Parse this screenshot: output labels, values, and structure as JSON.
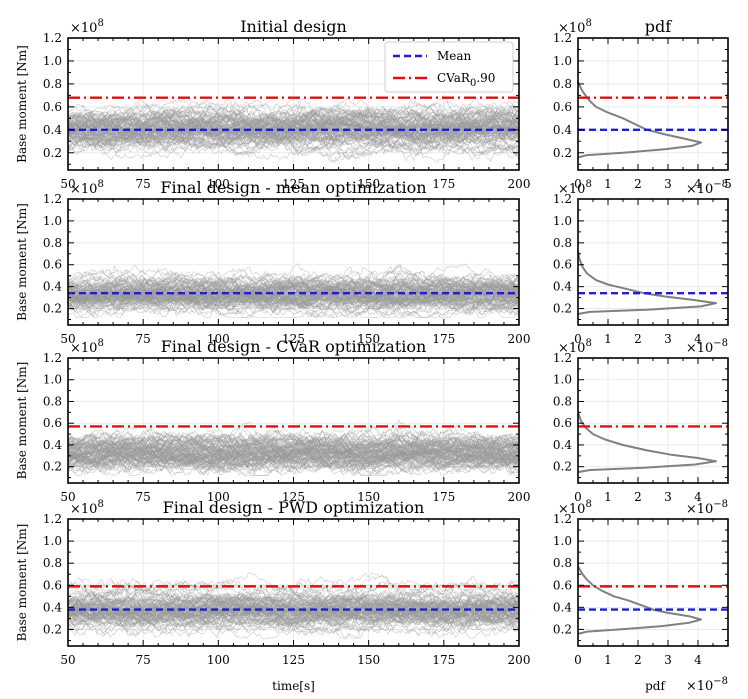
{
  "chart_data": {
    "type": "line",
    "figure": {
      "ylabel": "Base moment [Nm]",
      "xlabel": "time[s]",
      "pdf_xlabel": "pdf",
      "pdf_top_title": "pdf",
      "y_exponent": "×10",
      "y_exponent_power": "8",
      "pdf_exponent": "×10",
      "pdf_exponent_power": "−8",
      "legend": {
        "mean": "Mean",
        "cvar_main": "CVaR",
        "cvar_sub": "0",
        "cvar_tail": ".90"
      }
    },
    "xlim": [
      50,
      200
    ],
    "x_ticks": [
      50,
      75,
      100,
      125,
      150,
      175,
      200
    ],
    "ylim": [
      0.05,
      1.2
    ],
    "y_ticks": [
      0.2,
      0.4,
      0.6,
      0.8,
      1.0,
      1.2
    ],
    "y_tick_labels": [
      "0.2",
      "0.4",
      "0.6",
      "0.8",
      "1.0",
      "1.2"
    ],
    "pdf_xlim": [
      0,
      5
    ],
    "pdf_ticks": [
      0,
      1,
      2,
      3,
      4,
      5
    ],
    "colors": {
      "mean": "#1f1fcc",
      "cvar": "#e01010",
      "traces": "#9a9a9a",
      "pdf": "#808080"
    },
    "n_traces": 100,
    "panels": [
      {
        "title": "Initial design",
        "mean": 0.4,
        "cvar": 0.68,
        "trace_base": 0.4,
        "trace_spread": 0.11,
        "bump": null,
        "show_legend": true,
        "show_pdf_exponent": false,
        "show_pdf_title": true,
        "pdf_ticks_shown": [
          0,
          1,
          2,
          3,
          4,
          5
        ],
        "pdf_curve": [
          [
            0.16,
            0
          ],
          [
            0.18,
            0.3
          ],
          [
            0.2,
            1.5
          ],
          [
            0.23,
            2.9
          ],
          [
            0.26,
            3.8
          ],
          [
            0.29,
            4.1
          ],
          [
            0.32,
            3.6
          ],
          [
            0.36,
            2.9
          ],
          [
            0.4,
            2.3
          ],
          [
            0.45,
            1.9
          ],
          [
            0.5,
            1.5
          ],
          [
            0.55,
            1.0
          ],
          [
            0.6,
            0.6
          ],
          [
            0.65,
            0.4
          ],
          [
            0.7,
            0.25
          ],
          [
            0.75,
            0.12
          ],
          [
            0.82,
            0
          ]
        ]
      },
      {
        "title": "Final design - mean optimization",
        "mean": 0.34,
        "cvar": null,
        "trace_base": 0.33,
        "trace_spread": 0.085,
        "bump": 160,
        "show_legend": false,
        "show_pdf_exponent": true,
        "show_pdf_title": false,
        "pdf_ticks_shown": [
          0,
          1,
          2,
          3,
          4
        ],
        "pdf_curve": [
          [
            0.15,
            0
          ],
          [
            0.17,
            0.4
          ],
          [
            0.19,
            2.3
          ],
          [
            0.22,
            4.1
          ],
          [
            0.25,
            4.6
          ],
          [
            0.28,
            3.8
          ],
          [
            0.31,
            2.9
          ],
          [
            0.34,
            2.2
          ],
          [
            0.38,
            1.6
          ],
          [
            0.42,
            1.0
          ],
          [
            0.46,
            0.6
          ],
          [
            0.52,
            0.3
          ],
          [
            0.58,
            0.15
          ],
          [
            0.65,
            0.05
          ],
          [
            0.72,
            0
          ]
        ]
      },
      {
        "title": "Final design - CVaR optimization",
        "mean": null,
        "cvar": 0.57,
        "trace_base": 0.33,
        "trace_spread": 0.09,
        "bump": 160,
        "show_legend": false,
        "show_pdf_exponent": true,
        "show_pdf_title": false,
        "pdf_ticks_shown": [
          0,
          1,
          2,
          3,
          4
        ],
        "pdf_curve": [
          [
            0.15,
            0
          ],
          [
            0.17,
            0.4
          ],
          [
            0.19,
            2.2
          ],
          [
            0.22,
            3.9
          ],
          [
            0.25,
            4.6
          ],
          [
            0.28,
            4.0
          ],
          [
            0.31,
            3.1
          ],
          [
            0.35,
            2.3
          ],
          [
            0.4,
            1.5
          ],
          [
            0.45,
            0.9
          ],
          [
            0.5,
            0.5
          ],
          [
            0.56,
            0.25
          ],
          [
            0.62,
            0.1
          ],
          [
            0.7,
            0
          ]
        ]
      },
      {
        "title": "Final design - PWD optimization",
        "mean": 0.38,
        "cvar": 0.59,
        "trace_base": 0.38,
        "trace_spread": 0.09,
        "bump": null,
        "show_legend": false,
        "show_pdf_exponent": true,
        "show_pdf_title": false,
        "pdf_ticks_shown": [
          0,
          1,
          2,
          3,
          4
        ],
        "pdf_curve": [
          [
            0.16,
            0
          ],
          [
            0.18,
            0.3
          ],
          [
            0.2,
            1.4
          ],
          [
            0.23,
            2.8
          ],
          [
            0.26,
            3.7
          ],
          [
            0.29,
            4.1
          ],
          [
            0.32,
            3.7
          ],
          [
            0.35,
            3.0
          ],
          [
            0.38,
            2.5
          ],
          [
            0.42,
            2.1
          ],
          [
            0.46,
            1.7
          ],
          [
            0.5,
            1.2
          ],
          [
            0.55,
            0.8
          ],
          [
            0.6,
            0.5
          ],
          [
            0.65,
            0.3
          ],
          [
            0.7,
            0.15
          ],
          [
            0.77,
            0
          ]
        ]
      }
    ]
  }
}
